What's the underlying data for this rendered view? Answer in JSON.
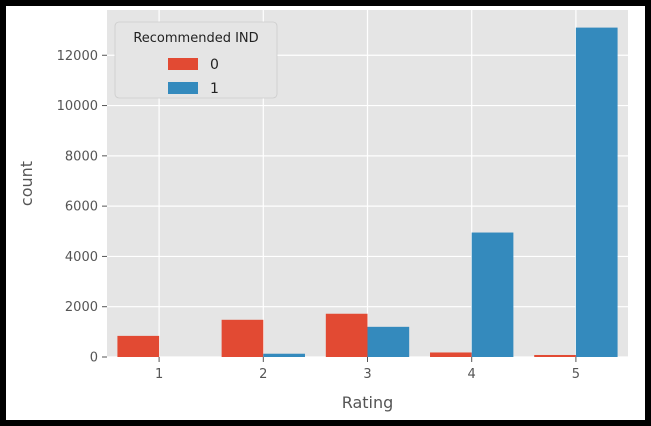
{
  "chart_data": {
    "type": "bar",
    "title": "",
    "xlabel": "Rating",
    "ylabel": "count",
    "categories": [
      "1",
      "2",
      "3",
      "4",
      "5"
    ],
    "series": [
      {
        "name": "0",
        "color": "#e24a33",
        "values": [
          840,
          1480,
          1720,
          180,
          80
        ]
      },
      {
        "name": "1",
        "color": "#348abd",
        "values": [
          0,
          130,
          1200,
          4950,
          13100
        ]
      }
    ],
    "ylim": [
      0,
      13800
    ],
    "yticks": [
      0,
      2000,
      4000,
      6000,
      8000,
      10000,
      12000
    ],
    "grid": true,
    "background_color": "#e5e5e5",
    "legend": {
      "title": "Recommended IND",
      "placement": "top-left"
    }
  }
}
